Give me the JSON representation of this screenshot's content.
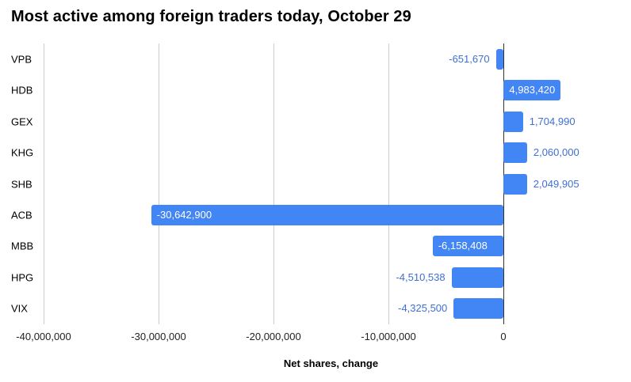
{
  "title": "Most active among foreign traders today, October 29",
  "chart_data": {
    "type": "bar",
    "orientation": "horizontal",
    "title": "Most active among foreign traders today, October 29",
    "categories": [
      "VPB",
      "HDB",
      "GEX",
      "KHG",
      "SHB",
      "ACB",
      "MBB",
      "HPG",
      "VIX"
    ],
    "values": [
      -651670,
      4983420,
      1704990,
      2060000,
      2049905,
      -30642900,
      -6158408,
      -4510538,
      -4325500
    ],
    "labels": [
      "-651,670",
      "4,983,420",
      "1,704,990",
      "2,060,000",
      "2,049,905",
      "-30,642,900",
      "-6,158,408",
      "-4,510,538",
      "-4,325,500"
    ],
    "label_inside": [
      false,
      true,
      false,
      false,
      false,
      true,
      true,
      false,
      false
    ],
    "xlabel": "Net shares, change",
    "x_ticks": [
      "-40,000,000",
      "-30,000,000",
      "-20,000,000",
      "-10,000,000",
      "0"
    ],
    "x_tick_values": [
      -40000000,
      -30000000,
      -20000000,
      -10000000,
      0
    ],
    "xlim": [
      -40000000,
      10000000
    ],
    "grid": true,
    "legend": "none",
    "colors": {
      "bar": "#4285f4",
      "outside_label": "#3e6fd4",
      "inside_label": "#ffffff",
      "gridline": "#cccccc",
      "zero_line": "#333333",
      "axis_text": "#222222",
      "title_text": "#000000"
    }
  }
}
